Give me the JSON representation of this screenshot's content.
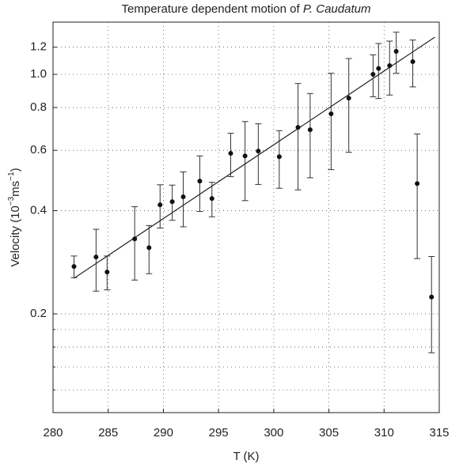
{
  "chart_data": {
    "type": "scatter",
    "title": "Temperature dependent motion of",
    "title_species": "P. Caudatum",
    "xlabel": "T (K)",
    "ylabel": [
      "Velocity (10",
      "−3",
      "ms",
      "−1",
      ")"
    ],
    "log_y": true,
    "grid": true,
    "color": "#111111",
    "x": [
      281.9,
      283.9,
      284.9,
      287.4,
      288.7,
      289.7,
      290.8,
      291.8,
      293.3,
      294.4,
      296.1,
      297.4,
      298.6,
      300.5,
      302.2,
      303.3,
      305.2,
      306.8,
      309.0,
      309.5,
      310.5,
      311.1,
      312.6,
      313.0,
      314.3
    ],
    "values": [
      0.275,
      0.293,
      0.265,
      0.331,
      0.312,
      0.416,
      0.425,
      0.439,
      0.488,
      0.434,
      0.588,
      0.578,
      0.597,
      0.575,
      0.7,
      0.689,
      0.767,
      0.852,
      1.0,
      1.04,
      1.06,
      1.167,
      1.089,
      0.48,
      0.224
    ],
    "errors": [
      0.02,
      0.06,
      0.03,
      0.08,
      0.05,
      0.06,
      0.05,
      0.08,
      0.09,
      0.05,
      0.085,
      0.15,
      0.12,
      0.11,
      0.24,
      0.19,
      0.24,
      0.26,
      0.14,
      0.19,
      0.19,
      0.16,
      0.17,
      0.19,
      0.07
    ],
    "fit": {
      "x": [
        281.9,
        314.6
      ],
      "values": [
        0.254,
        1.284
      ]
    },
    "xlim": [
      280,
      315
    ],
    "xticks": [
      280,
      285,
      290,
      295,
      300,
      305,
      310,
      315
    ],
    "ylim": [
      0.103,
      1.42
    ],
    "yticks": [
      0.2,
      0.4,
      0.6,
      0.8,
      {
        "value": 1,
        "label": "1.0"
      },
      1.2
    ],
    "yminor": [
      0.12,
      0.14,
      0.16,
      0.18
    ]
  }
}
